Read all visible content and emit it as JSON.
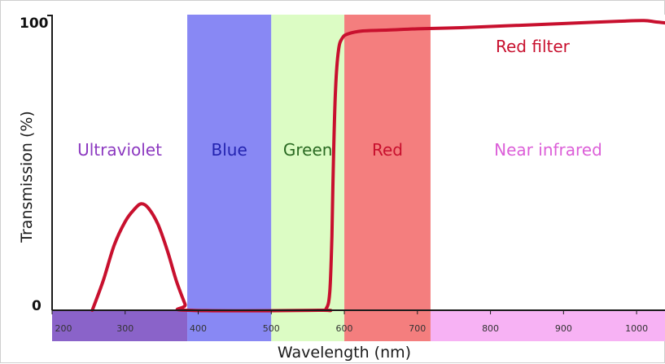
{
  "chart_data": {
    "type": "line",
    "xlabel": "Wavelength (nm)",
    "ylabel": "Transmission (%)",
    "xlim": [
      200,
      1040
    ],
    "ylim": [
      0,
      100
    ],
    "y_ticks": [
      0,
      100
    ],
    "x_ticks": [
      200,
      300,
      400,
      500,
      600,
      700,
      800,
      900,
      1000
    ],
    "grid": false,
    "bands": [
      {
        "label": "Ultraviolet",
        "from": 200,
        "to": 385,
        "fill": "#ffffff",
        "strip": "#8a63c9",
        "text_color": "#8c39c0"
      },
      {
        "label": "Blue",
        "from": 385,
        "to": 500,
        "fill": "#8888f4",
        "strip": "#8888f4",
        "text_color": "#2424b0"
      },
      {
        "label": "Green",
        "from": 500,
        "to": 600,
        "fill": "#dcfcc4",
        "strip": "#dcfcc4",
        "text_color": "#2a6a22"
      },
      {
        "label": "Red",
        "from": 600,
        "to": 718,
        "fill": "#f47e7e",
        "strip": "#f47e7e",
        "text_color": "#c8102e"
      },
      {
        "label": "Near infrared",
        "from": 718,
        "to": 1040,
        "fill": "#ffffff",
        "strip": "#f7b2f4",
        "text_color": "#dc5fd8"
      }
    ],
    "series": [
      {
        "name": "Red filter",
        "color": "#c8102e",
        "points": [
          [
            255,
            0
          ],
          [
            270,
            10
          ],
          [
            285,
            22
          ],
          [
            300,
            30
          ],
          [
            312,
            34
          ],
          [
            322,
            36
          ],
          [
            332,
            34.5
          ],
          [
            345,
            29
          ],
          [
            358,
            20
          ],
          [
            370,
            10
          ],
          [
            382,
            2
          ],
          [
            385,
            0
          ],
          [
            565,
            0
          ],
          [
            575,
            0.5
          ],
          [
            580,
            6
          ],
          [
            583,
            25
          ],
          [
            585,
            50
          ],
          [
            588,
            75
          ],
          [
            592,
            88
          ],
          [
            597,
            92
          ],
          [
            605,
            93.5
          ],
          [
            625,
            94.5
          ],
          [
            660,
            94.8
          ],
          [
            700,
            95.2
          ],
          [
            760,
            95.6
          ],
          [
            820,
            96.2
          ],
          [
            880,
            96.8
          ],
          [
            940,
            97.4
          ],
          [
            980,
            97.8
          ],
          [
            1010,
            98
          ],
          [
            1025,
            97.6
          ],
          [
            1040,
            97.2
          ]
        ]
      }
    ]
  }
}
